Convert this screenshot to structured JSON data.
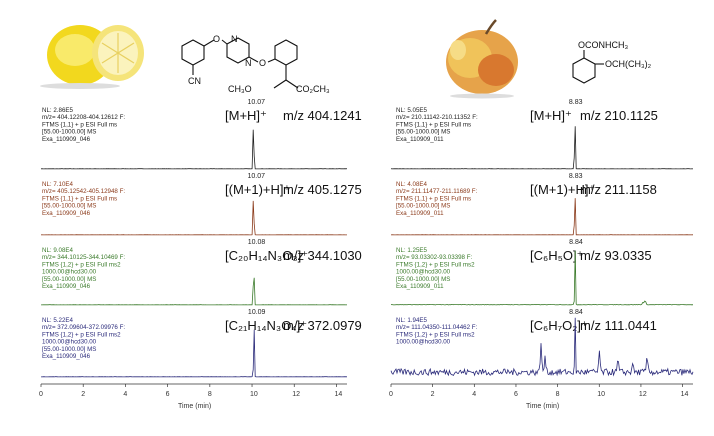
{
  "chart_data": [
    {
      "type": "line",
      "compound": "Azoxystrobin",
      "xlabel": "Time (min)",
      "xlim": [
        0,
        14.5
      ],
      "x_ticks": [
        0,
        2,
        4,
        6,
        8,
        10,
        12,
        14
      ],
      "structure_labels": {
        "cn": "CN",
        "och3": "CH₃O",
        "co2ch3": "CO₂CH₃"
      },
      "traces": [
        {
          "id": "t1",
          "color": "#222222",
          "info": [
            "NL: 2.86E5",
            "m/z= 404.12208-404.12612 F:",
            "FTMS {1,1} + p ESI Full ms",
            "[55.00-1000.00]  MS",
            "Exa_110909_046"
          ],
          "ion": "[M+H]⁺",
          "mz": "m/z 404.1241",
          "peak_label": "10.07",
          "peak_rt": 10.07,
          "noise": 0.005
        },
        {
          "id": "t2",
          "color": "#8b3a1a",
          "info": [
            "NL: 7.10E4",
            "m/z= 405.12542-405.12948 F:",
            "FTMS {1,1} + p ESI Full ms",
            "[55.00-1000.00]  MS",
            "Exa_110909_046"
          ],
          "ion": "[(M+1)+H]⁺",
          "mz": "m/z 405.1275",
          "peak_label": "10.07",
          "peak_rt": 10.07,
          "noise": 0.005
        },
        {
          "id": "t3",
          "color": "#3a7a2a",
          "info": [
            "NL: 9.08E4",
            "m/z= 344.10125-344.10469 F:",
            "FTMS {1,2} + p ESI Full ms2",
            "1000.00@hcd30.00",
            "[55.00-1000.00]  MS",
            "Exa_110909_046"
          ],
          "ion": "[C₂₀H₁₄N₃O₃]⁺",
          "mz": "m/z 344.1030",
          "peak_label": "10.08",
          "peak_rt": 10.08,
          "noise": 0.005
        },
        {
          "id": "t4",
          "color": "#2a2a7a",
          "info": [
            "NL: 5.22E4",
            "m/z= 372.09604-372.09976 F:",
            "FTMS {1,2} + p ESI Full ms2",
            "1000.00@hcd30.00",
            "[55.00-1000.00]  MS",
            "Exa_110909_046"
          ],
          "ion": "[C₂₁H₁₄N₃O₄]⁺",
          "mz": "m/z 372.0979",
          "peak_label": "10.09",
          "peak_rt": 10.09,
          "noise": 0.005
        }
      ]
    },
    {
      "type": "line",
      "compound": "Propoxur",
      "xlabel": "Time (min)",
      "xlim": [
        0,
        14.5
      ],
      "x_ticks": [
        0,
        2,
        4,
        6,
        8,
        10,
        12,
        14
      ],
      "structure_labels": {
        "oconhch3": "OCONHCH₃",
        "och": "OCH(CH₃)₂"
      },
      "traces": [
        {
          "id": "t5",
          "color": "#222222",
          "info": [
            "NL: 5.05E5",
            "m/z= 210.11142-210.11352 F:",
            "FTMS {1,1} + p ESI Full ms",
            "[55.00-1000.00]  MS",
            "Exa_110909_011"
          ],
          "ion": "[M+H]⁺",
          "mz": "m/z 210.1125",
          "peak_label": "8.83",
          "peak_rt": 8.83,
          "noise": 0.005
        },
        {
          "id": "t6",
          "color": "#8b3a1a",
          "info": [
            "NL: 4.08E4",
            "m/z= 211.11477-211.11689 F:",
            "FTMS {1,1} + p ESI Full ms",
            "[55.00-1000.00]  MS",
            "Exa_110909_011"
          ],
          "ion": "[(M+1)+H]⁺",
          "mz": "m/z 211.1158",
          "peak_label": "8.83",
          "peak_rt": 8.83,
          "noise": 0.005
        },
        {
          "id": "t7",
          "color": "#3a7a2a",
          "info": [
            "NL: 1.25E5",
            "m/z= 93.03302-93.03398 F:",
            "FTMS {1,2} + p ESI Full ms2",
            "1000.00@hcd30.00",
            "[55.00-1000.00]  MS",
            "Exa_110909_011"
          ],
          "ion": "[C₆H₅O]⁺",
          "mz": "m/z 93.0335",
          "peak_label": "8.84",
          "peak_rt": 8.84,
          "noise": 0.01,
          "minor_peaks": [
            [
              12.1,
              0.05
            ],
            [
              12.2,
              0.08
            ]
          ]
        },
        {
          "id": "t8",
          "color": "#2a2a7a",
          "info": [
            "NL: 1.94E5",
            "m/z= 111.04350-111.04462 F:",
            "FTMS {1,2} + p ESI Full ms2",
            "1000.00@hcd30.00"
          ],
          "ion": "[C₆H₇O₂]⁺",
          "mz": "m/z 111.0441",
          "peak_label": "8.84",
          "peak_rt": 8.84,
          "noise": 0.14,
          "minor_peaks": [
            [
              7.2,
              0.55
            ],
            [
              7.4,
              0.3
            ],
            [
              10.0,
              0.38
            ],
            [
              10.9,
              0.22
            ],
            [
              11.6,
              0.18
            ],
            [
              12.3,
              0.28
            ]
          ]
        }
      ]
    }
  ]
}
